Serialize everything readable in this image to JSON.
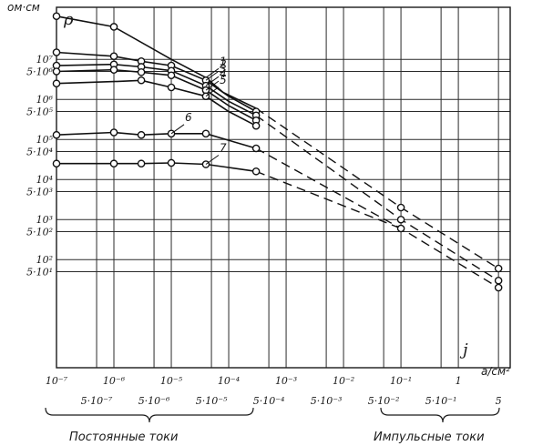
{
  "chart_data": {
    "type": "line",
    "y_unit": "ом·см",
    "y_symbol": "ρ",
    "x_symbol": "j",
    "x_unit": "a/см²",
    "x_scale": "log",
    "y_scale": "log",
    "xlim": [
      1e-07,
      8
    ],
    "ylim": [
      0.2,
      200000000
    ],
    "grid": true,
    "x_ticks_upper": [
      {
        "label": "10⁻⁷",
        "value": 1e-07
      },
      {
        "label": "10⁻⁶",
        "value": 1e-06
      },
      {
        "label": "10⁻⁵",
        "value": 1e-05
      },
      {
        "label": "10⁻⁴",
        "value": 0.0001
      },
      {
        "label": "10⁻³",
        "value": 0.001
      },
      {
        "label": "10⁻²",
        "value": 0.01
      },
      {
        "label": "10⁻¹",
        "value": 0.1
      },
      {
        "label": "1",
        "value": 1
      }
    ],
    "x_ticks_lower": [
      {
        "label": "5·10⁻⁷",
        "value": 5e-07
      },
      {
        "label": "5·10⁻⁶",
        "value": 5e-06
      },
      {
        "label": "5·10⁻⁵",
        "value": 5e-05
      },
      {
        "label": "5·10⁻⁴",
        "value": 0.0005
      },
      {
        "label": "5·10⁻³",
        "value": 0.005
      },
      {
        "label": "5·10⁻²",
        "value": 0.05
      },
      {
        "label": "5·10⁻¹",
        "value": 0.5
      },
      {
        "label": "5",
        "value": 5
      }
    ],
    "y_ticks": [
      {
        "label": "10⁷",
        "value": 10000000.0
      },
      {
        "label": "5·10⁶",
        "value": 5000000.0
      },
      {
        "label": "10⁶",
        "value": 1000000.0
      },
      {
        "label": "5·10⁵",
        "value": 500000.0
      },
      {
        "label": "10⁵",
        "value": 100000.0
      },
      {
        "label": "5·10⁴",
        "value": 50000.0
      },
      {
        "label": "10⁴",
        "value": 10000.0
      },
      {
        "label": "5·10³",
        "value": 5000.0
      },
      {
        "label": "10³",
        "value": 1000.0
      },
      {
        "label": "5·10²",
        "value": 500.0
      },
      {
        "label": "10²",
        "value": 100.0
      },
      {
        "label": "5·10¹",
        "value": 50.0
      }
    ],
    "series": [
      {
        "name": "1",
        "solid": [
          [
            1e-07,
            120000000.0
          ],
          [
            1e-06,
            65000000.0
          ],
          [
            1e-05,
            10000000.0
          ],
          [
            4e-05,
            3500000.0
          ],
          [
            8e-05,
            1500000.0
          ],
          [
            0.0003,
            600000.0
          ]
        ],
        "dashed": [
          [
            0.0003,
            600000.0
          ],
          [
            0.1,
            2000
          ],
          [
            5,
            60
          ]
        ],
        "points": [
          [
            1e-07,
            120000000.0
          ],
          [
            1e-06,
            65000000.0
          ],
          [
            0.1,
            2000
          ],
          [
            5,
            60
          ]
        ]
      },
      {
        "name": "2",
        "solid": [
          [
            1e-07,
            15000000.0
          ],
          [
            1e-06,
            12000000.0
          ],
          [
            3e-06,
            9000000.0
          ],
          [
            1e-05,
            7000000.0
          ],
          [
            4e-05,
            3000000.0
          ],
          [
            0.0001,
            1200000.0
          ],
          [
            0.0003,
            500000.0
          ]
        ],
        "dashed": [],
        "points": [
          [
            1e-07,
            15000000.0
          ],
          [
            1e-06,
            12000000.0
          ],
          [
            3e-06,
            9000000.0
          ],
          [
            1e-05,
            7000000.0
          ],
          [
            4e-05,
            3000000.0
          ],
          [
            0.0003,
            500000.0
          ]
        ]
      },
      {
        "name": "3",
        "solid": [
          [
            1e-07,
            7000000.0
          ],
          [
            1e-06,
            7500000.0
          ],
          [
            3e-06,
            6500000.0
          ],
          [
            1e-05,
            5200000.0
          ],
          [
            4e-05,
            2200000.0
          ],
          [
            0.0001,
            900000.0
          ],
          [
            0.0003,
            400000.0
          ]
        ],
        "dashed": [
          [
            0.0003,
            400000.0
          ],
          [
            0.1,
            1000
          ],
          [
            5,
            30
          ]
        ],
        "points": [
          [
            1e-07,
            7000000.0
          ],
          [
            1e-06,
            7500000.0
          ],
          [
            3e-06,
            6500000.0
          ],
          [
            1e-05,
            5200000.0
          ],
          [
            4e-05,
            2200000.0
          ],
          [
            0.0003,
            400000.0
          ],
          [
            0.1,
            1000
          ],
          [
            5,
            30
          ]
        ]
      },
      {
        "name": "4",
        "solid": [
          [
            1e-07,
            5000000.0
          ],
          [
            1e-06,
            5500000.0
          ],
          [
            3e-06,
            4800000.0
          ],
          [
            1e-05,
            4000000.0
          ],
          [
            4e-05,
            1700000.0
          ],
          [
            0.0001,
            700000.0
          ],
          [
            0.0003,
            300000.0
          ]
        ],
        "dashed": [],
        "points": [
          [
            1e-07,
            5000000.0
          ],
          [
            1e-06,
            5500000.0
          ],
          [
            3e-06,
            4800000.0
          ],
          [
            1e-05,
            4000000.0
          ],
          [
            4e-05,
            1700000.0
          ],
          [
            0.0003,
            300000.0
          ]
        ]
      },
      {
        "name": "5",
        "solid": [
          [
            1e-07,
            2500000.0
          ],
          [
            1e-06,
            2800000.0
          ],
          [
            3e-06,
            3000000.0
          ],
          [
            1e-05,
            2000000.0
          ],
          [
            4e-05,
            1200000.0
          ],
          [
            0.0001,
            500000.0
          ],
          [
            0.0003,
            220000.0
          ]
        ],
        "dashed": [],
        "points": [
          [
            1e-07,
            2500000.0
          ],
          [
            3e-06,
            3000000.0
          ],
          [
            1e-05,
            2000000.0
          ],
          [
            4e-05,
            1200000.0
          ],
          [
            0.0003,
            220000.0
          ]
        ]
      },
      {
        "name": "6",
        "solid": [
          [
            1e-07,
            130000.0
          ],
          [
            1e-06,
            150000.0
          ],
          [
            3e-06,
            130000.0
          ],
          [
            1e-05,
            140000.0
          ],
          [
            4e-05,
            140000.0
          ],
          [
            0.0003,
            60000.0
          ]
        ],
        "dashed": [
          [
            0.0003,
            60000.0
          ],
          [
            0.1,
            600
          ],
          [
            5,
            20
          ]
        ],
        "points": [
          [
            1e-07,
            130000.0
          ],
          [
            1e-06,
            150000.0
          ],
          [
            3e-06,
            130000.0
          ],
          [
            1e-05,
            140000.0
          ],
          [
            4e-05,
            140000.0
          ],
          [
            0.0003,
            60000.0
          ],
          [
            0.1,
            600
          ],
          [
            5,
            20
          ]
        ]
      },
      {
        "name": "7",
        "solid": [
          [
            1e-07,
            25000.0
          ],
          [
            1e-06,
            25000.0
          ],
          [
            3e-06,
            25000.0
          ],
          [
            1e-05,
            26000.0
          ],
          [
            4e-05,
            24000.0
          ],
          [
            0.0001,
            20000.0
          ],
          [
            0.0003,
            16000.0
          ]
        ],
        "dashed": [
          [
            0.0003,
            16000.0
          ],
          [
            0.1,
            600
          ]
        ],
        "points": [
          [
            1e-07,
            25000.0
          ],
          [
            1e-06,
            25000.0
          ],
          [
            3e-06,
            25000.0
          ],
          [
            1e-05,
            26000.0
          ],
          [
            4e-05,
            24000.0
          ],
          [
            0.0003,
            16000.0
          ]
        ]
      }
    ],
    "captions": {
      "dc": "Постоянные токи",
      "pulse": "Импульсные токи"
    }
  }
}
